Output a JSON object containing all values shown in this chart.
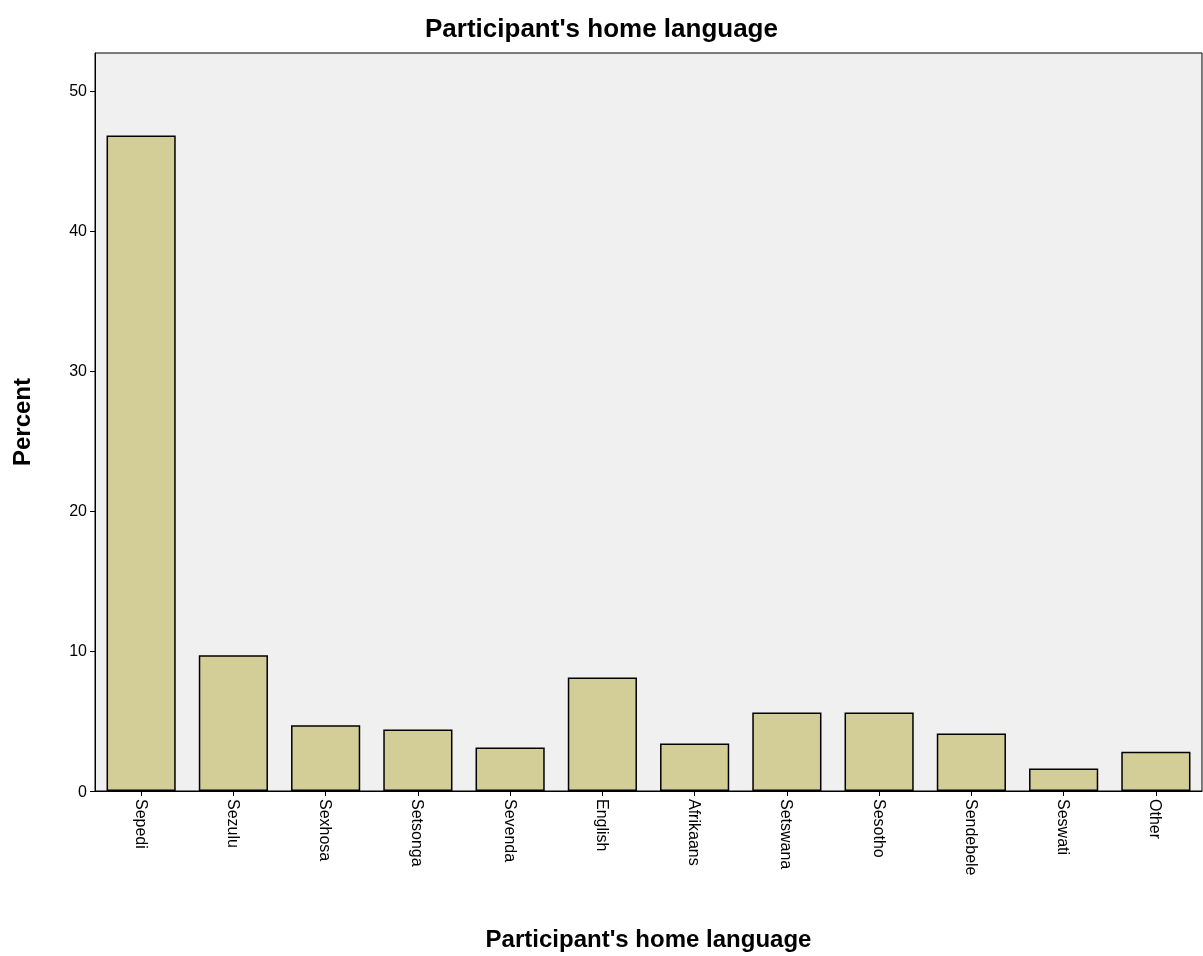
{
  "chart_data": {
    "type": "bar",
    "title": "Participant's home language",
    "xlabel": "Participant's home language",
    "ylabel": "Percent",
    "categories": [
      "Sepedi",
      "Sezulu",
      "Sexhosa",
      "Setsonga",
      "Sevenda",
      "English",
      "Afrikaans",
      "Setswana",
      "Sesotho",
      "Sendebele",
      "Seswati",
      "Other"
    ],
    "values": [
      46.8,
      9.7,
      4.7,
      4.4,
      3.1,
      8.1,
      3.4,
      5.6,
      5.6,
      4.1,
      1.6,
      2.8
    ],
    "color": "#d3ce97",
    "ylim": [
      0,
      52.7
    ],
    "yticks": [
      0,
      10,
      20,
      30,
      40,
      50
    ],
    "grid": false
  }
}
